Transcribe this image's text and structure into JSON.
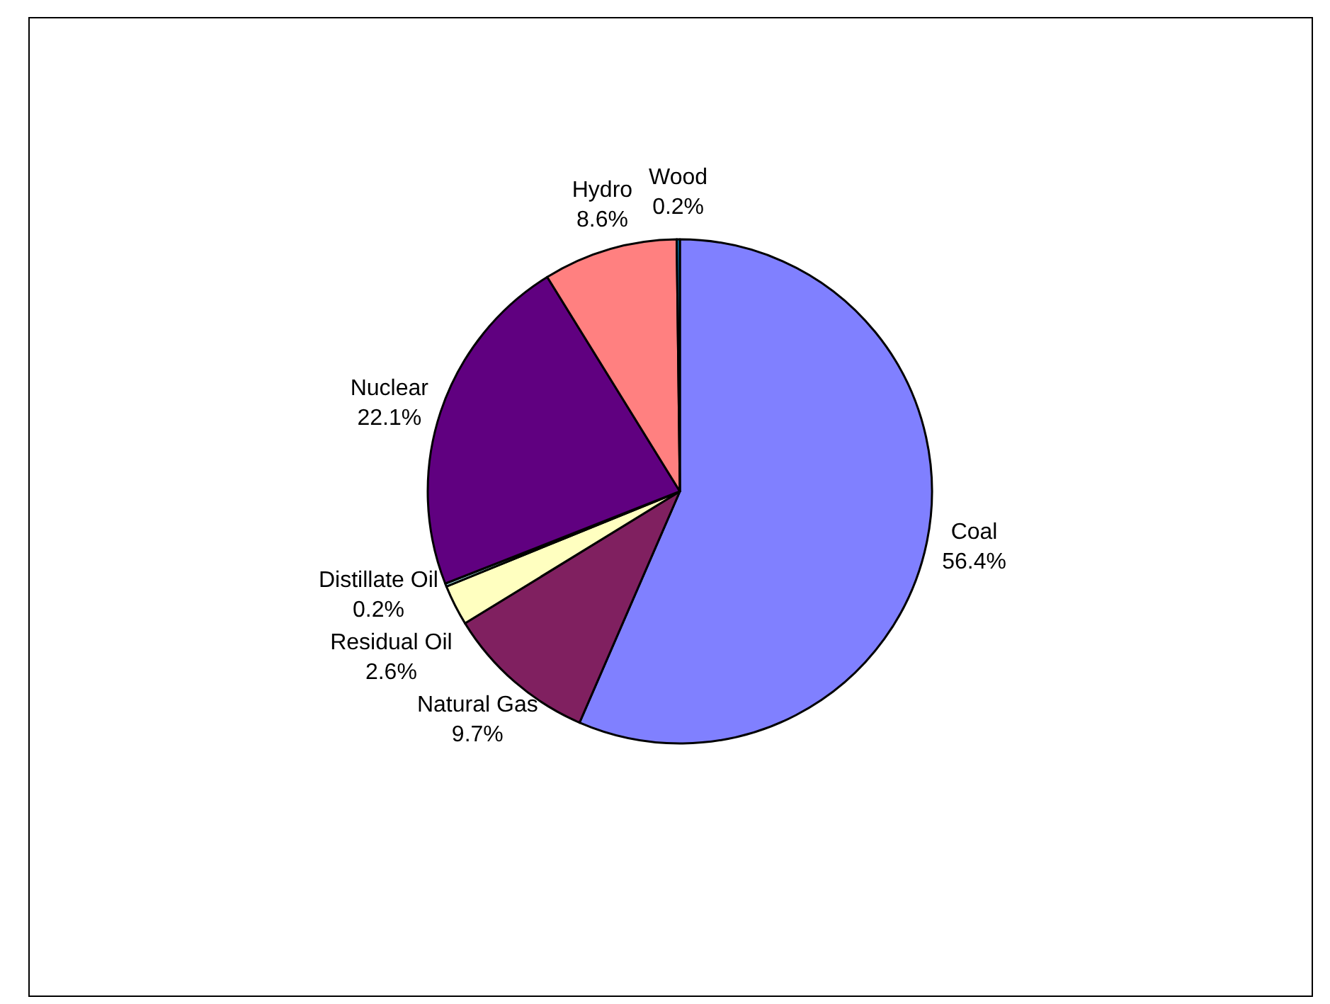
{
  "chart_data": {
    "type": "pie",
    "categories": [
      "Coal",
      "Natural Gas",
      "Residual Oil",
      "Distillate Oil",
      "Nuclear",
      "Hydro",
      "Wood"
    ],
    "values": [
      56.4,
      9.7,
      2.6,
      0.2,
      22.1,
      8.6,
      0.2
    ],
    "value_labels": [
      "56.4%",
      "9.7%",
      "2.6%",
      "0.2%",
      "22.1%",
      "8.6%",
      "0.2%"
    ],
    "colors": [
      "#8080ff",
      "#802060",
      "#ffffc0",
      "#a0e0e0",
      "#600080",
      "#ff8080",
      "#0080c0"
    ]
  }
}
